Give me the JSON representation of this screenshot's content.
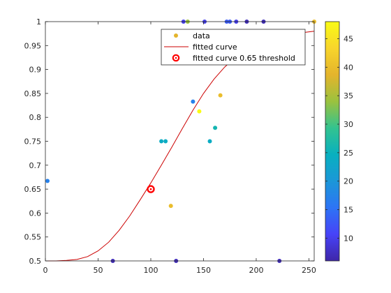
{
  "chart_data": {
    "type": "scatter",
    "xlim": [
      0,
      255
    ],
    "ylim": [
      0.5,
      1.0
    ],
    "x_ticks": [
      0,
      50,
      100,
      150,
      200,
      250
    ],
    "y_ticks": [
      0.5,
      0.55,
      0.6,
      0.65,
      0.7,
      0.75,
      0.8,
      0.85,
      0.9,
      0.95,
      1
    ],
    "x_tick_labels": [
      "0",
      "50",
      "100",
      "150",
      "200",
      "250"
    ],
    "y_tick_labels": [
      "0.5",
      "0.55",
      "0.6",
      "0.65",
      "0.7",
      "0.75",
      "0.8",
      "0.85",
      "0.9",
      "0.95",
      "1"
    ],
    "grid": false,
    "legend": {
      "location": "top-right",
      "entries": [
        "data",
        "fitted curve",
        "fitted curve 0.65 threshold"
      ]
    },
    "colorbar": {
      "range": [
        6,
        48
      ],
      "ticks": [
        10,
        15,
        20,
        25,
        30,
        35,
        40,
        45
      ],
      "tick_labels": [
        "10",
        "15",
        "20",
        "25",
        "30",
        "35",
        "40",
        "45"
      ],
      "colormap": [
        "#3e26a8",
        "#4743f8",
        "#2d74f5",
        "#1b97d8",
        "#08b0bf",
        "#33c38f",
        "#9bc23e",
        "#e4b42c",
        "#f8d52c",
        "#f9fb15"
      ]
    },
    "series": [
      {
        "type": "scatter",
        "points": [
          {
            "x": 2,
            "y": 0.667,
            "c": 17
          },
          {
            "x": 64,
            "y": 0.5,
            "c": 7
          },
          {
            "x": 124,
            "y": 0.5,
            "c": 7
          },
          {
            "x": 222,
            "y": 0.5,
            "c": 7
          },
          {
            "x": 119,
            "y": 0.615,
            "c": 40
          },
          {
            "x": 110,
            "y": 0.75,
            "c": 24
          },
          {
            "x": 114,
            "y": 0.75,
            "c": 24
          },
          {
            "x": 156,
            "y": 0.75,
            "c": 24
          },
          {
            "x": 161,
            "y": 0.778,
            "c": 26
          },
          {
            "x": 140,
            "y": 0.833,
            "c": 17
          },
          {
            "x": 146,
            "y": 0.8125,
            "c": 48
          },
          {
            "x": 166,
            "y": 0.846,
            "c": 40
          },
          {
            "x": 131,
            "y": 1.0,
            "c": 10
          },
          {
            "x": 135,
            "y": 1.0,
            "c": 34
          },
          {
            "x": 151,
            "y": 1.0,
            "c": 10
          },
          {
            "x": 172,
            "y": 1.0,
            "c": 13
          },
          {
            "x": 175,
            "y": 1.0,
            "c": 13
          },
          {
            "x": 181,
            "y": 1.0,
            "c": 10
          },
          {
            "x": 191,
            "y": 1.0,
            "c": 7
          },
          {
            "x": 207,
            "y": 1.0,
            "c": 7
          },
          {
            "x": 255,
            "y": 1.0,
            "c": 40
          }
        ]
      },
      {
        "type": "line",
        "color": "#cc0000",
        "x": [
          0,
          10,
          20,
          30,
          40,
          50,
          60,
          70,
          80,
          90,
          100,
          110,
          120,
          130,
          140,
          150,
          160,
          170,
          180,
          190,
          200,
          210,
          220,
          230,
          240,
          255
        ],
        "y": [
          0.5,
          0.5,
          0.501,
          0.503,
          0.509,
          0.521,
          0.539,
          0.564,
          0.594,
          0.628,
          0.663,
          0.7,
          0.738,
          0.777,
          0.815,
          0.85,
          0.88,
          0.905,
          0.925,
          0.941,
          0.953,
          0.962,
          0.969,
          0.973,
          0.976,
          0.98
        ]
      },
      {
        "type": "marker",
        "color": "#ff0000",
        "x": 100,
        "y": 0.65
      }
    ]
  }
}
